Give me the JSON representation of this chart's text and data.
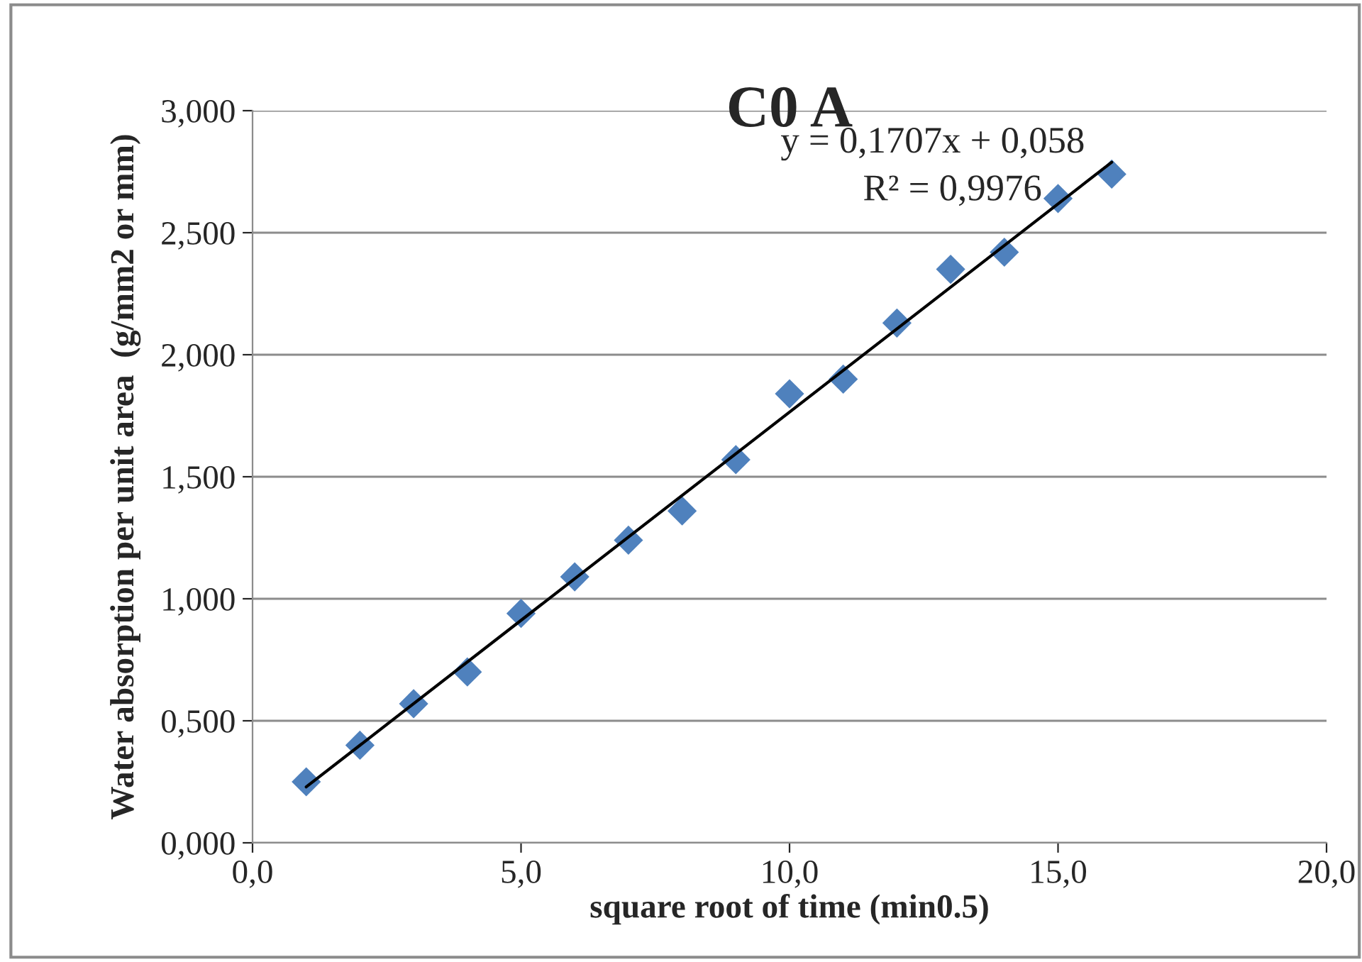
{
  "chart_data": {
    "type": "scatter",
    "title": "C0 A",
    "xlabel": "square root of time (min0.5)",
    "ylabel": "Water absorption per unit area  (g/mm2 or mm)",
    "series": [
      {
        "color": "#4f81bd",
        "marker": "diamond",
        "x": [
          1,
          2,
          3,
          4,
          5,
          6,
          7,
          8,
          9,
          10,
          11,
          12,
          13,
          14,
          15,
          16
        ],
        "values": [
          0.25,
          0.4,
          0.57,
          0.7,
          0.94,
          1.09,
          1.24,
          1.36,
          1.57,
          1.84,
          1.9,
          2.13,
          2.35,
          2.42,
          2.64,
          2.74
        ]
      },
      {
        "type": "line",
        "color": "#000000",
        "marker": "none",
        "line_style": "solid",
        "x": [
          1,
          16
        ],
        "values": [
          0.229,
          2.789
        ]
      }
    ],
    "xlim": [
      0,
      20
    ],
    "xticks": [
      {
        "value": 0,
        "label": "0,0"
      },
      {
        "value": 5,
        "label": "5,0"
      },
      {
        "value": 10,
        "label": "10,0"
      },
      {
        "value": 15,
        "label": "15,0"
      },
      {
        "value": 20,
        "label": "20,0"
      }
    ],
    "ylim": [
      0,
      3
    ],
    "yticks": [
      {
        "value": 0,
        "label": "0,000"
      },
      {
        "value": 0.5,
        "label": "0,500"
      },
      {
        "value": 1,
        "label": "1,000"
      },
      {
        "value": 1.5,
        "label": "1,500"
      },
      {
        "value": 2,
        "label": "2,000"
      },
      {
        "value": 2.5,
        "label": "2,500"
      },
      {
        "value": 3,
        "label": "3,000"
      }
    ],
    "grid": "y",
    "annotations": [
      "y = 0,1707x + 0,058",
      "R² = 0,9976"
    ]
  }
}
